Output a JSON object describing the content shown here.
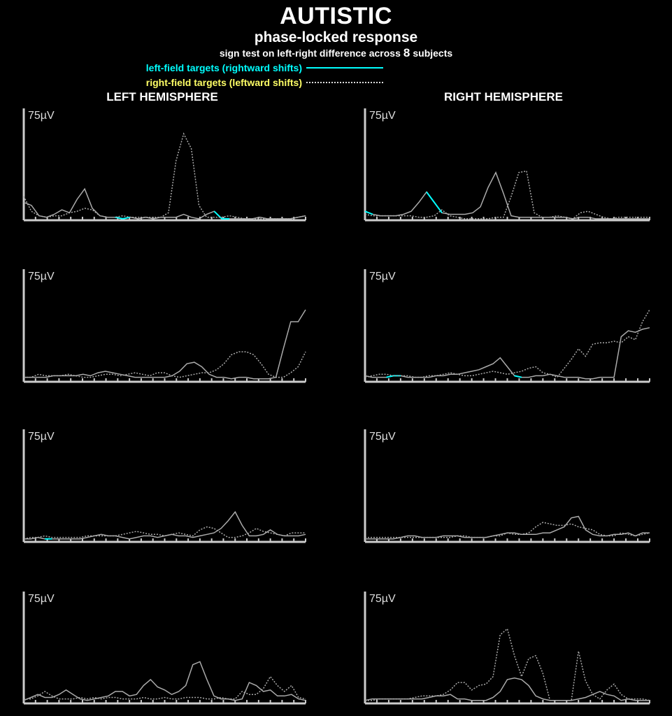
{
  "header": {
    "title": "AUTISTIC",
    "subtitle": "phase-locked response",
    "sign_test_prefix": "sign test on left-right difference across",
    "subject_count": "8",
    "sign_test_suffix": "subjects"
  },
  "legend": {
    "left_field": "left-field targets (rightward shifts)",
    "right_field": "right-field targets (leftward shifts)"
  },
  "columns": {
    "left": "LEFT HEMISPHERE",
    "right": "RIGHT HEMISPHERE"
  },
  "colors": {
    "background": "#000000",
    "trace": "#aaaaaa",
    "significant": "#00ffff",
    "axis": "#cccccc"
  },
  "chart_data": [
    {
      "type": "line",
      "panel": "left-hemisphere-row-1",
      "y_label": "75µV",
      "ylim": [
        0,
        75
      ],
      "series": [
        {
          "style": "solid",
          "values": [
            12,
            10,
            3,
            2,
            4,
            7,
            5,
            14,
            21,
            8,
            3,
            2,
            2,
            1,
            2,
            1,
            2,
            1,
            2,
            2,
            2,
            4,
            2,
            1,
            4,
            6,
            1,
            1,
            1,
            1,
            1,
            2,
            1,
            1,
            1,
            1,
            2,
            3
          ],
          "significant": [
            [
              12,
              14
            ],
            [
              25,
              27
            ]
          ]
        },
        {
          "style": "dotted",
          "values": [
            16,
            6,
            3,
            2,
            3,
            3,
            5,
            6,
            8,
            7,
            3,
            2,
            2,
            3,
            2,
            2,
            2,
            2,
            2,
            5,
            40,
            58,
            48,
            10,
            2,
            2,
            2,
            3,
            2,
            1,
            1,
            1,
            1,
            1,
            1,
            1,
            2,
            3
          ],
          "significant": []
        }
      ]
    },
    {
      "type": "line",
      "panel": "right-hemisphere-row-1",
      "y_label": "75µV",
      "ylim": [
        0,
        75
      ],
      "series": [
        {
          "style": "solid",
          "values": [
            6,
            4,
            3,
            3,
            3,
            4,
            6,
            12,
            19,
            12,
            5,
            4,
            4,
            4,
            5,
            9,
            22,
            32,
            18,
            3,
            2,
            2,
            2,
            2,
            2,
            2,
            2,
            1,
            2,
            2,
            1,
            1,
            1,
            1,
            1,
            1,
            1,
            1
          ],
          "significant": [
            [
              0,
              1
            ],
            [
              8,
              10
            ]
          ]
        },
        {
          "style": "dotted",
          "values": [
            4,
            3,
            3,
            3,
            3,
            3,
            3,
            2,
            2,
            3,
            7,
            3,
            2,
            1,
            1,
            1,
            1,
            2,
            2,
            16,
            32,
            33,
            5,
            2,
            2,
            3,
            2,
            1,
            5,
            6,
            4,
            2,
            1,
            2,
            2,
            2,
            2,
            2
          ],
          "significant": []
        }
      ]
    },
    {
      "type": "line",
      "panel": "left-hemisphere-row-2",
      "y_label": "75µV",
      "ylim": [
        0,
        75
      ],
      "series": [
        {
          "style": "solid",
          "values": [
            3,
            3,
            3,
            3,
            4,
            4,
            4,
            4,
            5,
            4,
            6,
            7,
            6,
            5,
            4,
            3,
            3,
            3,
            3,
            3,
            4,
            7,
            12,
            13,
            10,
            5,
            3,
            3,
            2,
            3,
            3,
            2,
            2,
            2,
            3,
            22,
            40,
            40,
            48
          ],
          "significant": []
        },
        {
          "style": "dotted",
          "values": [
            3,
            3,
            5,
            4,
            4,
            4,
            5,
            4,
            3,
            3,
            4,
            5,
            5,
            4,
            5,
            6,
            5,
            4,
            6,
            6,
            4,
            3,
            4,
            5,
            6,
            6,
            8,
            12,
            18,
            20,
            20,
            18,
            12,
            5,
            3,
            3,
            6,
            10,
            20
          ],
          "significant": []
        }
      ]
    },
    {
      "type": "line",
      "panel": "right-hemisphere-row-2",
      "y_label": "75µV",
      "ylim": [
        0,
        75
      ],
      "series": [
        {
          "style": "solid",
          "values": [
            4,
            3,
            3,
            3,
            4,
            4,
            3,
            3,
            3,
            3,
            4,
            4,
            5,
            5,
            6,
            7,
            8,
            10,
            12,
            16,
            10,
            4,
            3,
            3,
            4,
            4,
            5,
            4,
            3,
            3,
            3,
            2,
            2,
            3,
            3,
            3,
            30,
            34,
            33,
            35,
            36
          ],
          "significant": [
            [
              3,
              5
            ],
            [
              21,
              22
            ]
          ]
        },
        {
          "style": "dotted",
          "values": [
            3,
            4,
            5,
            5,
            4,
            4,
            4,
            3,
            3,
            4,
            4,
            5,
            6,
            5,
            4,
            4,
            5,
            6,
            7,
            6,
            5,
            6,
            7,
            9,
            10,
            6,
            5,
            3,
            9,
            15,
            22,
            17,
            25,
            26,
            26,
            27,
            26,
            30,
            28,
            40,
            48
          ],
          "significant": []
        }
      ]
    },
    {
      "type": "line",
      "panel": "left-hemisphere-row-3",
      "y_label": "75µV",
      "ylim": [
        0,
        75
      ],
      "series": [
        {
          "style": "solid",
          "values": [
            2,
            2,
            3,
            2,
            2,
            2,
            2,
            2,
            2,
            3,
            4,
            5,
            4,
            4,
            3,
            2,
            3,
            4,
            4,
            3,
            4,
            5,
            4,
            4,
            3,
            4,
            5,
            6,
            9,
            14,
            20,
            11,
            4,
            4,
            5,
            8,
            5,
            4,
            4,
            4,
            5
          ],
          "significant": [
            [
              3,
              4
            ]
          ]
        },
        {
          "style": "dotted",
          "values": [
            2,
            3,
            3,
            4,
            3,
            3,
            3,
            3,
            3,
            4,
            4,
            4,
            4,
            4,
            5,
            6,
            7,
            6,
            5,
            5,
            4,
            5,
            6,
            5,
            4,
            8,
            10,
            9,
            6,
            3,
            3,
            4,
            6,
            9,
            7,
            6,
            5,
            4,
            6,
            6,
            6
          ],
          "significant": []
        }
      ]
    },
    {
      "type": "line",
      "panel": "right-hemisphere-row-3",
      "y_label": "75µV",
      "ylim": [
        0,
        75
      ],
      "series": [
        {
          "style": "solid",
          "values": [
            2,
            2,
            2,
            2,
            2,
            3,
            4,
            4,
            3,
            3,
            3,
            4,
            4,
            4,
            3,
            3,
            3,
            3,
            4,
            5,
            6,
            6,
            5,
            5,
            5,
            6,
            6,
            8,
            10,
            16,
            17,
            8,
            5,
            4,
            4,
            5,
            5,
            6,
            4,
            6,
            6
          ],
          "significant": []
        },
        {
          "style": "dotted",
          "values": [
            3,
            3,
            3,
            3,
            3,
            3,
            3,
            3,
            3,
            3,
            3,
            3,
            3,
            4,
            4,
            3,
            3,
            3,
            4,
            4,
            6,
            5,
            5,
            6,
            10,
            13,
            12,
            11,
            11,
            12,
            10,
            9,
            8,
            5,
            4,
            4,
            6,
            5,
            4,
            5,
            6
          ],
          "significant": []
        }
      ]
    },
    {
      "type": "line",
      "panel": "left-hemisphere-row-4",
      "y_label": "75µV",
      "ylim": [
        0,
        75
      ],
      "series": [
        {
          "style": "solid",
          "values": [
            2,
            4,
            6,
            4,
            4,
            6,
            9,
            6,
            3,
            2,
            3,
            4,
            5,
            8,
            8,
            5,
            6,
            12,
            16,
            11,
            9,
            6,
            8,
            12,
            26,
            28,
            16,
            5,
            3,
            3,
            2,
            3,
            14,
            12,
            8,
            9,
            5,
            5,
            6,
            3,
            2
          ],
          "significant": []
        },
        {
          "style": "dotted",
          "values": [
            3,
            3,
            5,
            8,
            5,
            3,
            3,
            3,
            4,
            3,
            4,
            3,
            4,
            4,
            3,
            3,
            3,
            4,
            3,
            3,
            4,
            3,
            3,
            4,
            4,
            4,
            3,
            3,
            4,
            3,
            3,
            8,
            6,
            6,
            10,
            18,
            12,
            8,
            12,
            4,
            3
          ],
          "significant": []
        }
      ]
    },
    {
      "type": "line",
      "panel": "right-hemisphere-row-4",
      "y_label": "75µV",
      "ylim": [
        0,
        75
      ],
      "series": [
        {
          "style": "solid",
          "values": [
            2,
            3,
            3,
            3,
            3,
            3,
            3,
            3,
            3,
            4,
            5,
            5,
            6,
            3,
            3,
            2,
            2,
            2,
            4,
            8,
            16,
            17,
            16,
            12,
            5,
            3,
            2,
            2,
            2,
            2,
            3,
            4,
            6,
            8,
            6,
            5,
            2,
            3,
            2,
            2,
            2
          ],
          "significant": []
        },
        {
          "style": "dotted",
          "values": [
            2,
            2,
            3,
            3,
            3,
            3,
            3,
            4,
            5,
            5,
            5,
            6,
            9,
            14,
            14,
            9,
            12,
            13,
            18,
            46,
            50,
            32,
            18,
            30,
            32,
            20,
            2,
            2,
            2,
            2,
            35,
            15,
            6,
            3,
            9,
            13,
            6,
            3,
            3,
            3,
            2
          ],
          "significant": []
        }
      ]
    }
  ]
}
